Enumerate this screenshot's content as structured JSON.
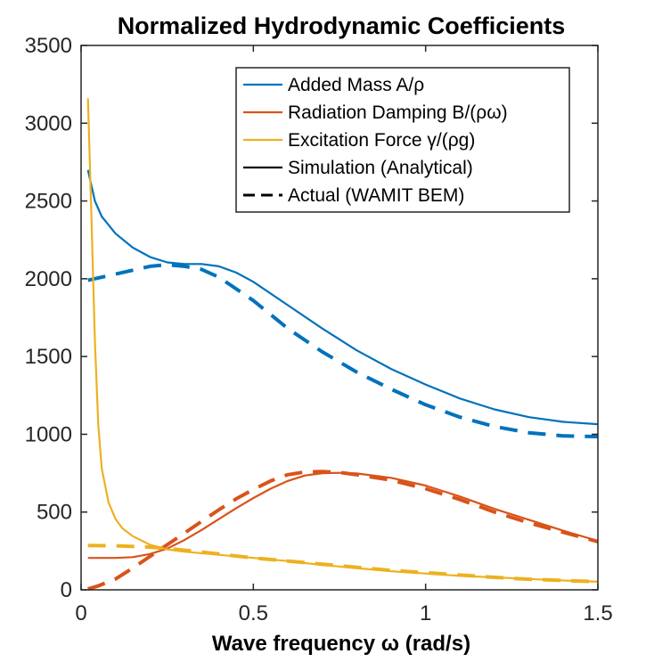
{
  "chart_data": {
    "type": "line",
    "title": "Normalized Hydrodynamic Coefficients",
    "xlabel": "Wave frequency ω (rad/s)",
    "ylabel": "",
    "xlim": [
      0,
      1.5
    ],
    "ylim": [
      0,
      3500
    ],
    "x_ticks": [
      0,
      0.5,
      1,
      1.5
    ],
    "x_tick_labels": [
      "0",
      "0.5",
      "1",
      "1.5"
    ],
    "y_ticks": [
      0,
      500,
      1000,
      1500,
      2000,
      2500,
      3000,
      3500
    ],
    "y_tick_labels": [
      "0",
      "500",
      "1000",
      "1500",
      "2000",
      "2500",
      "3000",
      "3500"
    ],
    "grid": false,
    "legend_position": "top-right",
    "legend": [
      {
        "label": "Added Mass A/ρ",
        "color": "#0072BD",
        "style": "solid"
      },
      {
        "label": "Radiation Damping B/(ρω)",
        "color": "#D95319",
        "style": "solid"
      },
      {
        "label": "Excitation Force γ/(ρg)",
        "color": "#EDB120",
        "style": "solid"
      },
      {
        "label": "Simulation (Analytical)",
        "color": "#000000",
        "style": "solid"
      },
      {
        "label": "Actual (WAMIT BEM)",
        "color": "#000000",
        "style": "dashed"
      }
    ],
    "series": [
      {
        "kind": "added-mass",
        "variant": "simulation",
        "color": "#0072BD",
        "style": "solid",
        "x": [
          0.02,
          0.04,
          0.06,
          0.1,
          0.15,
          0.2,
          0.25,
          0.3,
          0.35,
          0.4,
          0.45,
          0.5,
          0.6,
          0.7,
          0.8,
          0.9,
          1.0,
          1.1,
          1.2,
          1.3,
          1.4,
          1.5
        ],
        "y": [
          2700,
          2500,
          2400,
          2290,
          2200,
          2140,
          2105,
          2095,
          2095,
          2080,
          2040,
          1980,
          1830,
          1680,
          1540,
          1420,
          1320,
          1230,
          1160,
          1110,
          1080,
          1065
        ]
      },
      {
        "kind": "added-mass",
        "variant": "actual",
        "color": "#0072BD",
        "style": "dashed",
        "x": [
          0.02,
          0.1,
          0.2,
          0.25,
          0.3,
          0.35,
          0.4,
          0.5,
          0.6,
          0.7,
          0.8,
          0.9,
          1.0,
          1.1,
          1.2,
          1.3,
          1.4,
          1.5
        ],
        "y": [
          1990,
          2030,
          2080,
          2090,
          2080,
          2060,
          2010,
          1860,
          1680,
          1530,
          1400,
          1290,
          1190,
          1110,
          1050,
          1010,
          990,
          985
        ]
      },
      {
        "kind": "radiation-damping",
        "variant": "simulation",
        "color": "#D95319",
        "style": "solid",
        "x": [
          0.02,
          0.1,
          0.15,
          0.2,
          0.25,
          0.3,
          0.35,
          0.4,
          0.45,
          0.5,
          0.55,
          0.6,
          0.65,
          0.7,
          0.75,
          0.8,
          0.9,
          1.0,
          1.1,
          1.2,
          1.3,
          1.4,
          1.5
        ],
        "y": [
          205,
          205,
          210,
          230,
          265,
          320,
          385,
          455,
          525,
          590,
          650,
          700,
          735,
          750,
          752,
          748,
          720,
          670,
          600,
          520,
          450,
          380,
          315
        ]
      },
      {
        "kind": "radiation-damping",
        "variant": "actual",
        "color": "#D95319",
        "style": "dashed",
        "x": [
          0.02,
          0.05,
          0.1,
          0.15,
          0.2,
          0.25,
          0.3,
          0.35,
          0.4,
          0.45,
          0.5,
          0.55,
          0.6,
          0.65,
          0.7,
          0.75,
          0.8,
          0.9,
          1.0,
          1.1,
          1.2,
          1.3,
          1.4,
          1.5
        ],
        "y": [
          5,
          25,
          70,
          140,
          215,
          290,
          365,
          440,
          515,
          585,
          645,
          700,
          740,
          758,
          760,
          755,
          740,
          705,
          650,
          580,
          500,
          430,
          370,
          310
        ]
      },
      {
        "kind": "excitation-force",
        "variant": "simulation",
        "color": "#EDB120",
        "style": "solid",
        "x": [
          0.02,
          0.03,
          0.04,
          0.05,
          0.06,
          0.08,
          0.1,
          0.12,
          0.15,
          0.2,
          0.25,
          0.3,
          0.4,
          0.5,
          0.6,
          0.7,
          0.8,
          0.9,
          1.0,
          1.1,
          1.2,
          1.3,
          1.4,
          1.5
        ],
        "y": [
          3160,
          2400,
          1600,
          1060,
          780,
          560,
          455,
          395,
          345,
          290,
          260,
          245,
          225,
          205,
          185,
          160,
          140,
          120,
          105,
          90,
          80,
          70,
          60,
          52
        ]
      },
      {
        "kind": "excitation-force",
        "variant": "actual",
        "color": "#EDB120",
        "style": "dashed",
        "x": [
          0.02,
          0.1,
          0.2,
          0.3,
          0.4,
          0.5,
          0.6,
          0.7,
          0.8,
          0.9,
          1.0,
          1.1,
          1.2,
          1.3,
          1.4,
          1.5
        ],
        "y": [
          285,
          283,
          275,
          255,
          230,
          205,
          185,
          165,
          145,
          125,
          110,
          95,
          80,
          68,
          60,
          52
        ]
      }
    ]
  }
}
